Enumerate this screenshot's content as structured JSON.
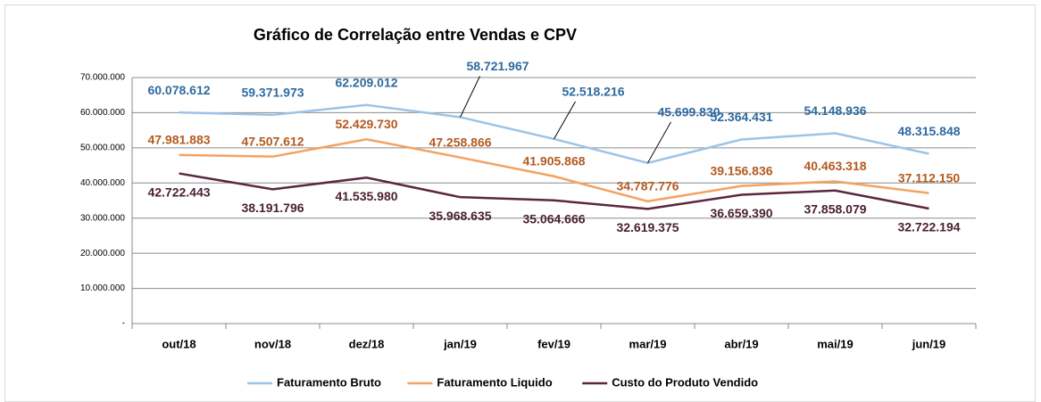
{
  "chart_data": {
    "type": "line",
    "title": "Gráfico de Correlação entre Vendas e CPV",
    "categories": [
      "out/18",
      "nov/18",
      "dez/18",
      "jan/19",
      "fev/19",
      "mar/19",
      "abr/19",
      "mai/19",
      "jun/19"
    ],
    "series": [
      {
        "name": "Faturamento Bruto",
        "color": "#9dc3e6",
        "label_color": "#2e6aa0",
        "values": [
          60078612,
          59371973,
          62209012,
          58721967,
          52518216,
          45699830,
          52364431,
          54148936,
          48315848
        ],
        "value_labels": [
          "60.078.612",
          "59.371.973",
          "62.209.012",
          "58.721.967",
          "52.518.216",
          "45.699.830",
          "52.364.431",
          "54.148.936",
          "48.315.848"
        ]
      },
      {
        "name": "Faturamento Liquido",
        "color": "#f4a261",
        "label_color": "#b35a1f",
        "values": [
          47981883,
          47507612,
          52429730,
          47258866,
          41905868,
          34787776,
          39156836,
          40463318,
          37112150
        ],
        "value_labels": [
          "47.981.883",
          "47.507.612",
          "52.429.730",
          "47.258.866",
          "41.905.868",
          "34.787.776",
          "39.156.836",
          "40.463.318",
          "37.112.150"
        ]
      },
      {
        "name": "Custo do Produto Vendido",
        "color": "#5b2641",
        "label_color": "#4a2034",
        "values": [
          42722443,
          38191796,
          41535980,
          35968635,
          35064666,
          32619375,
          36659390,
          37858079,
          32722194
        ],
        "value_labels": [
          "42.722.443",
          "38.191.796",
          "41.535.980",
          "35.968.635",
          "35.064.666",
          "32.619.375",
          "36.659.390",
          "37.858.079",
          "32.722.194"
        ]
      }
    ],
    "ylim": [
      0,
      70000000
    ],
    "yticks": [
      {
        "value": 0,
        "label": "-"
      },
      {
        "value": 10000000,
        "label": "10.000.000"
      },
      {
        "value": 20000000,
        "label": "20.000.000"
      },
      {
        "value": 30000000,
        "label": "30.000.000"
      },
      {
        "value": 40000000,
        "label": "40.000.000"
      },
      {
        "value": 50000000,
        "label": "50.000.000"
      },
      {
        "value": 60000000,
        "label": "60.000.000"
      },
      {
        "value": 70000000,
        "label": "70.000.000"
      }
    ],
    "grid": true,
    "legend": "bottom"
  }
}
